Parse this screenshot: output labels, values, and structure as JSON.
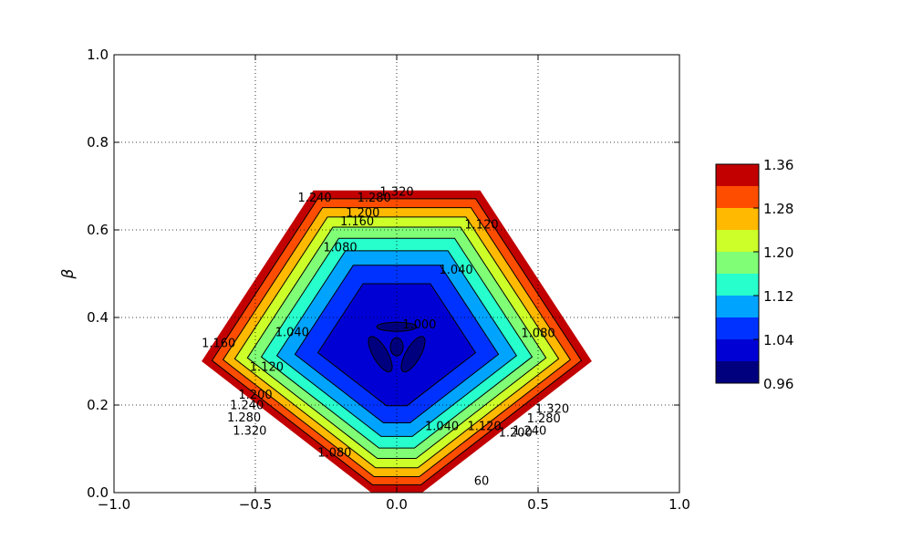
{
  "chart_data": {
    "type": "contour",
    "title": "",
    "xlabel": "",
    "ylabel": "β",
    "xlim": [
      -1.0,
      1.0
    ],
    "ylim": [
      0.0,
      1.0
    ],
    "grid": true,
    "x_ticks": [
      {
        "value": -1.0,
        "label": "−1.0"
      },
      {
        "value": -0.5,
        "label": "−0.5"
      },
      {
        "value": 0.0,
        "label": "0.0"
      },
      {
        "value": 0.5,
        "label": "0.5"
      },
      {
        "value": 1.0,
        "label": "1.0"
      }
    ],
    "y_ticks": [
      {
        "value": 0.0,
        "label": "0.0"
      },
      {
        "value": 0.2,
        "label": "0.2"
      },
      {
        "value": 0.4,
        "label": "0.4"
      },
      {
        "value": 0.6,
        "label": "0.6"
      },
      {
        "value": 0.8,
        "label": "0.8"
      },
      {
        "value": 1.0,
        "label": "1.0"
      }
    ],
    "colormap": "jet",
    "colorbar": {
      "placement": "right",
      "levels": [
        0.96,
        1.0,
        1.04,
        1.08,
        1.12,
        1.16,
        1.2,
        1.24,
        1.28,
        1.32,
        1.36
      ],
      "colors": [
        "#00007f",
        "#0000d5",
        "#0032ff",
        "#00a4ff",
        "#27ffcd",
        "#80ff76",
        "#cdff29",
        "#ffb900",
        "#ff4d00",
        "#c20000"
      ],
      "tick_labels": [
        {
          "value": 0.96,
          "label": "0.96"
        },
        {
          "value": 1.04,
          "label": "1.04"
        },
        {
          "value": 1.12,
          "label": "1.12"
        },
        {
          "value": 1.2,
          "label": "1.20"
        },
        {
          "value": 1.28,
          "label": "1.28"
        },
        {
          "value": 1.36,
          "label": "1.36"
        }
      ]
    },
    "field": {
      "shape": "hexagonal-domain",
      "center": [
        0.0,
        0.333
      ],
      "vertex_at_origin_x_range": [
        -0.1,
        0.1
      ],
      "minimum_value": 1.0,
      "edge_value": 1.36
    },
    "contour_labels": [
      {
        "text": "1.320",
        "x": 0.0,
        "y": 0.685
      },
      {
        "text": "1.280",
        "x": -0.08,
        "y": 0.672
      },
      {
        "text": "1.240",
        "x": -0.29,
        "y": 0.672
      },
      {
        "text": "1.200",
        "x": -0.12,
        "y": 0.637
      },
      {
        "text": "1.160",
        "x": -0.14,
        "y": 0.618
      },
      {
        "text": "1.120",
        "x": 0.3,
        "y": 0.61
      },
      {
        "text": "1.080",
        "x": -0.2,
        "y": 0.558
      },
      {
        "text": "1.040",
        "x": 0.21,
        "y": 0.507
      },
      {
        "text": "1.000",
        "x": 0.08,
        "y": 0.382
      },
      {
        "text": "1.040",
        "x": -0.37,
        "y": 0.365
      },
      {
        "text": "1.160",
        "x": -0.63,
        "y": 0.34
      },
      {
        "text": "1.120",
        "x": -0.46,
        "y": 0.285
      },
      {
        "text": "1.200",
        "x": -0.5,
        "y": 0.222
      },
      {
        "text": "1.240",
        "x": -0.53,
        "y": 0.198
      },
      {
        "text": "1.280",
        "x": -0.54,
        "y": 0.17
      },
      {
        "text": "1.320",
        "x": -0.52,
        "y": 0.14
      },
      {
        "text": "1.080",
        "x": 0.5,
        "y": 0.363
      },
      {
        "text": "1.040",
        "x": 0.16,
        "y": 0.15
      },
      {
        "text": "1.120",
        "x": 0.31,
        "y": 0.15
      },
      {
        "text": "1.200",
        "x": 0.42,
        "y": 0.135
      },
      {
        "text": "1.240",
        "x": 0.47,
        "y": 0.14
      },
      {
        "text": "1.280",
        "x": 0.52,
        "y": 0.168
      },
      {
        "text": "1.320",
        "x": 0.55,
        "y": 0.19
      },
      {
        "text": "1.080",
        "x": -0.22,
        "y": 0.09
      },
      {
        "text": "60",
        "x": 0.3,
        "y": 0.025
      }
    ]
  }
}
